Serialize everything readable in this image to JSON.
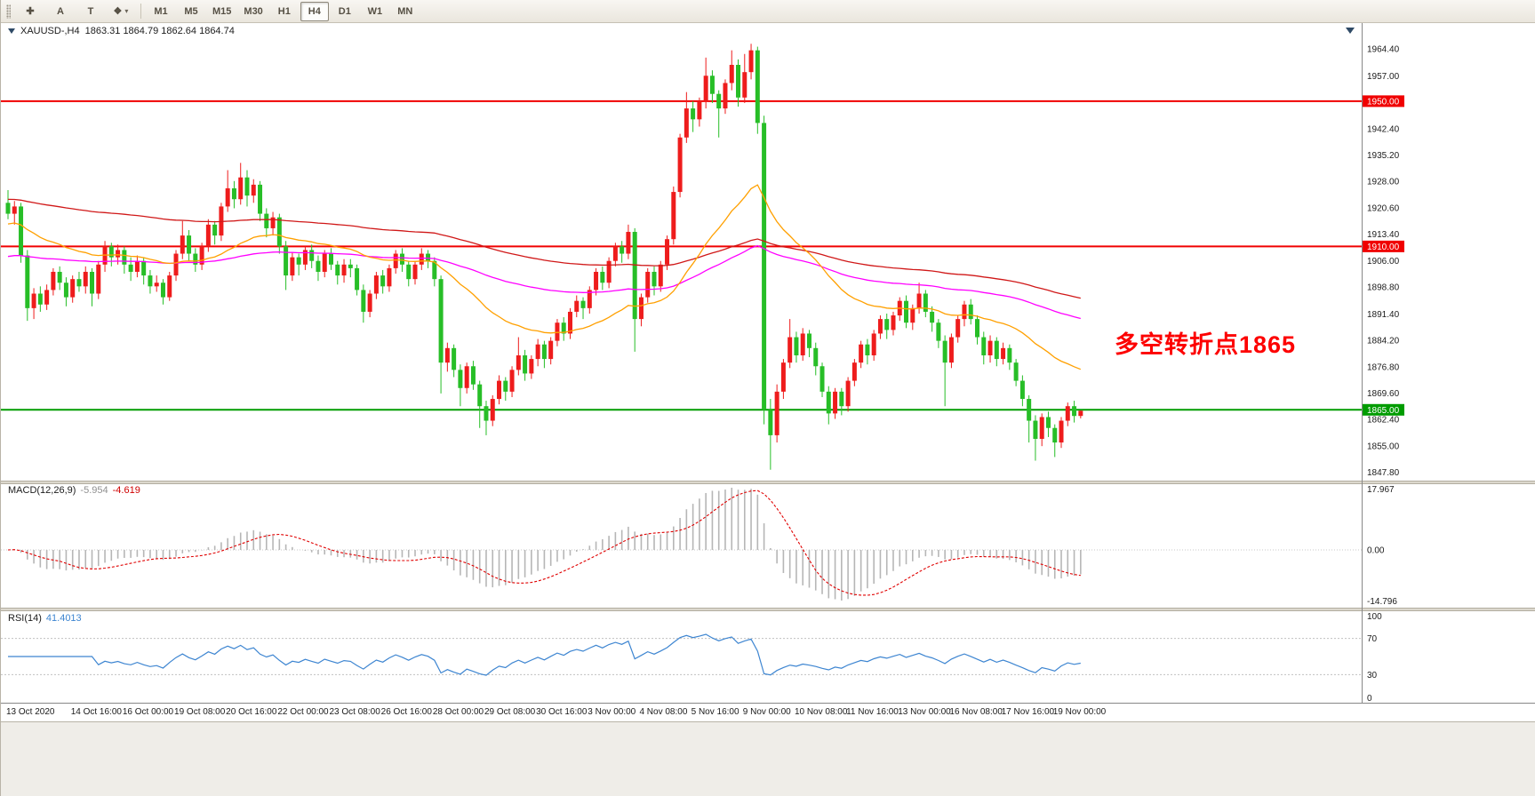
{
  "header": {
    "symbol": "XAUUSD-,H4",
    "ohlc": "1863.31 1864.79 1862.64 1864.74"
  },
  "annotation": {
    "text": "多空转折点1865",
    "color": "#fd0000"
  },
  "toolbar": {
    "tools": [
      {
        "name": "crosshair",
        "glyph": "✚"
      },
      {
        "name": "annotation-a",
        "glyph": "A"
      },
      {
        "name": "text-tool",
        "glyph": "T"
      },
      {
        "name": "shapes",
        "glyph": "❖",
        "caret": true
      }
    ],
    "timeframes": [
      {
        "label": "M1"
      },
      {
        "label": "M5"
      },
      {
        "label": "M15"
      },
      {
        "label": "M30"
      },
      {
        "label": "H1"
      },
      {
        "label": "H4",
        "active": true
      },
      {
        "label": "D1"
      },
      {
        "label": "W1"
      },
      {
        "label": "MN"
      }
    ]
  },
  "style": {
    "up": "#ee1c1c",
    "down": "#27be27",
    "macd_hist": "#b6b6b6",
    "macd_signal": "#e00000",
    "rsi_line": "#3d85d1",
    "level_line": "#c0c0c0",
    "grid_label": "#1a1a1a"
  },
  "chart_data": {
    "type": "candlestick",
    "title": "XAUUSD-,H4",
    "symbol": "XAUUSD-",
    "timeframe": "H4",
    "ylim": [
      1845.5,
      1971.5
    ],
    "y_ticks": [
      [
        1964.4,
        "1964.40"
      ],
      [
        1957.0,
        "1957.00"
      ],
      [
        1942.4,
        "1942.40"
      ],
      [
        1935.2,
        "1935.20"
      ],
      [
        1928.0,
        "1928.00"
      ],
      [
        1920.6,
        "1920.60"
      ],
      [
        1913.4,
        "1913.40"
      ],
      [
        1906.0,
        "1906.00"
      ],
      [
        1898.8,
        "1898.80"
      ],
      [
        1891.4,
        "1891.40"
      ],
      [
        1884.2,
        "1884.20"
      ],
      [
        1876.8,
        "1876.80"
      ],
      [
        1869.6,
        "1869.60"
      ],
      [
        1862.4,
        "1862.40"
      ],
      [
        1855.0,
        "1855.00"
      ],
      [
        1847.8,
        "1847.80"
      ]
    ],
    "hlines": [
      {
        "price": 1950.0,
        "label": "1950.00",
        "color": "#f00000"
      },
      {
        "price": 1910.0,
        "label": "1910.00",
        "color": "#f00000"
      },
      {
        "price": 1865.0,
        "label": "1865.00",
        "color": "#009c00"
      }
    ],
    "moving_averages": [
      {
        "name": "ma-slow-red",
        "period": 160,
        "seed": 1923,
        "color": "#d01818"
      },
      {
        "name": "ma-mid-magenta",
        "period": 110,
        "seed": 1907,
        "color": "#ff00ff"
      },
      {
        "name": "ma-fast-orange",
        "period": 34,
        "seed": 1916,
        "color": "#ffa000"
      }
    ],
    "macd": {
      "label": "MACD(12,26,9)",
      "value1": "-5.954",
      "value2": "-4.619",
      "fast": 12,
      "slow": 26,
      "signal_period": 9,
      "axis_labels": [
        "17.967",
        "0.00",
        "-14.796"
      ]
    },
    "rsi": {
      "label": "RSI(14)",
      "value": "41.4013",
      "period": 14,
      "levels": [
        70,
        30
      ],
      "axis_labels": [
        "100",
        "70",
        "30",
        "0"
      ]
    },
    "x_labels": [
      [
        0,
        "13 Oct 2020"
      ],
      [
        10,
        "14 Oct 16:00"
      ],
      [
        18,
        "16 Oct 00:00"
      ],
      [
        26,
        "19 Oct 08:00"
      ],
      [
        34,
        "20 Oct 16:00"
      ],
      [
        42,
        "22 Oct 00:00"
      ],
      [
        50,
        "23 Oct 08:00"
      ],
      [
        58,
        "26 Oct 16:00"
      ],
      [
        66,
        "28 Oct 00:00"
      ],
      [
        74,
        "29 Oct 08:00"
      ],
      [
        82,
        "30 Oct 16:00"
      ],
      [
        90,
        "3 Nov 00:00"
      ],
      [
        98,
        "4 Nov 08:00"
      ],
      [
        106,
        "5 Nov 16:00"
      ],
      [
        114,
        "9 Nov 00:00"
      ],
      [
        122,
        "10 Nov 08:00"
      ],
      [
        130,
        "11 Nov 16:00"
      ],
      [
        138,
        "13 Nov 00:00"
      ],
      [
        146,
        "16 Nov 08:00"
      ],
      [
        154,
        "17 Nov 16:00"
      ],
      [
        162,
        "19 Nov 00:00"
      ]
    ],
    "ohlc": [
      [
        1922,
        1925.5,
        1917.5,
        1919
      ],
      [
        1919,
        1922.5,
        1916,
        1921
      ],
      [
        1921,
        1922,
        1905.5,
        1907.5
      ],
      [
        1907.5,
        1909,
        1889.5,
        1893
      ],
      [
        1893,
        1898.5,
        1890,
        1897
      ],
      [
        1897,
        1899,
        1892,
        1894
      ],
      [
        1894,
        1899.5,
        1892.5,
        1898
      ],
      [
        1898,
        1904,
        1896.5,
        1903
      ],
      [
        1903,
        1904.5,
        1898,
        1900
      ],
      [
        1900,
        1901.5,
        1893.5,
        1896
      ],
      [
        1896,
        1902,
        1894.5,
        1901
      ],
      [
        1901,
        1903,
        1897.5,
        1899
      ],
      [
        1899,
        1904.5,
        1897,
        1903
      ],
      [
        1903,
        1904,
        1893.5,
        1897
      ],
      [
        1897,
        1906,
        1895.5,
        1905
      ],
      [
        1905,
        1911.5,
        1903,
        1910
      ],
      [
        1910,
        1911,
        1904.5,
        1907
      ],
      [
        1907,
        1910.5,
        1905,
        1909
      ],
      [
        1909,
        1910,
        1902.5,
        1905
      ],
      [
        1905,
        1907,
        1900.5,
        1903
      ],
      [
        1903,
        1907.5,
        1901.5,
        1906
      ],
      [
        1906,
        1907,
        1899.5,
        1902
      ],
      [
        1902,
        1903.5,
        1897,
        1899
      ],
      [
        1899,
        1902,
        1897.5,
        1900
      ],
      [
        1900,
        1901,
        1894,
        1896
      ],
      [
        1896,
        1903,
        1895,
        1902
      ],
      [
        1902,
        1909,
        1900.5,
        1908
      ],
      [
        1908,
        1917,
        1906.5,
        1913
      ],
      [
        1913,
        1914.5,
        1906,
        1908
      ],
      [
        1908,
        1909.5,
        1903,
        1905
      ],
      [
        1905,
        1911,
        1903.5,
        1910
      ],
      [
        1910,
        1917.5,
        1908.5,
        1916
      ],
      [
        1916,
        1917,
        1910.5,
        1913
      ],
      [
        1913,
        1922,
        1911.5,
        1921
      ],
      [
        1921,
        1931,
        1919.5,
        1926
      ],
      [
        1926,
        1928,
        1920.5,
        1923
      ],
      [
        1923,
        1933,
        1921.5,
        1929
      ],
      [
        1929,
        1931,
        1921,
        1924
      ],
      [
        1924,
        1928.5,
        1922,
        1927
      ],
      [
        1927,
        1928,
        1917,
        1919
      ],
      [
        1919,
        1920.5,
        1912.5,
        1915
      ],
      [
        1915,
        1919.5,
        1913,
        1918
      ],
      [
        1918,
        1919,
        1908,
        1910
      ],
      [
        1910,
        1911.5,
        1898,
        1902
      ],
      [
        1902,
        1908.5,
        1900.5,
        1907
      ],
      [
        1907,
        1908,
        1902,
        1905
      ],
      [
        1905,
        1910,
        1903.5,
        1909
      ],
      [
        1909,
        1910.5,
        1904,
        1906
      ],
      [
        1906,
        1907.5,
        1900.5,
        1903
      ],
      [
        1903,
        1909,
        1901.5,
        1908
      ],
      [
        1908,
        1909.5,
        1903.5,
        1905
      ],
      [
        1905,
        1906,
        1899.5,
        1902
      ],
      [
        1902,
        1906.5,
        1900,
        1905
      ],
      [
        1905,
        1906.5,
        1901.5,
        1904
      ],
      [
        1904,
        1905,
        1896.5,
        1898
      ],
      [
        1898,
        1899.5,
        1889,
        1892
      ],
      [
        1892,
        1898,
        1890.5,
        1897
      ],
      [
        1897,
        1903,
        1895.5,
        1902
      ],
      [
        1902,
        1903.5,
        1897,
        1899
      ],
      [
        1899,
        1905,
        1897.5,
        1904
      ],
      [
        1904,
        1909,
        1902.5,
        1908
      ],
      [
        1908,
        1909.5,
        1903,
        1905
      ],
      [
        1905,
        1906,
        1899,
        1901
      ],
      [
        1901,
        1906,
        1899.5,
        1905
      ],
      [
        1905,
        1909.5,
        1903.5,
        1908
      ],
      [
        1908,
        1909,
        1904,
        1906
      ],
      [
        1906,
        1907,
        1899,
        1901
      ],
      [
        1901,
        1902,
        1869.5,
        1878
      ],
      [
        1878,
        1883.5,
        1875.5,
        1882
      ],
      [
        1882,
        1883,
        1874,
        1876
      ],
      [
        1876,
        1877.5,
        1866,
        1871
      ],
      [
        1871,
        1878,
        1869.5,
        1877
      ],
      [
        1877,
        1878.5,
        1870.5,
        1872
      ],
      [
        1872,
        1873,
        1860,
        1866
      ],
      [
        1866,
        1867.5,
        1858,
        1862
      ],
      [
        1862,
        1869,
        1860.5,
        1868
      ],
      [
        1868,
        1874.5,
        1866.5,
        1873
      ],
      [
        1873,
        1874,
        1867.5,
        1870
      ],
      [
        1870,
        1877,
        1868.5,
        1876
      ],
      [
        1876,
        1885,
        1874.5,
        1880
      ],
      [
        1880,
        1881.5,
        1873,
        1875
      ],
      [
        1875,
        1880,
        1873.5,
        1879
      ],
      [
        1879,
        1884.5,
        1877,
        1883
      ],
      [
        1883,
        1884,
        1876.5,
        1879
      ],
      [
        1879,
        1885,
        1877.5,
        1884
      ],
      [
        1884,
        1890,
        1882.5,
        1889
      ],
      [
        1889,
        1890.5,
        1884,
        1886
      ],
      [
        1886,
        1893,
        1884.5,
        1892
      ],
      [
        1892,
        1896.5,
        1890.5,
        1895
      ],
      [
        1895,
        1896,
        1890,
        1893
      ],
      [
        1893,
        1899,
        1891.5,
        1898
      ],
      [
        1898,
        1904,
        1896.5,
        1903
      ],
      [
        1903,
        1904.5,
        1898,
        1900
      ],
      [
        1900,
        1907,
        1898.5,
        1906
      ],
      [
        1906,
        1911,
        1904.5,
        1910
      ],
      [
        1910,
        1911.5,
        1905.5,
        1908
      ],
      [
        1908,
        1916,
        1906.5,
        1914
      ],
      [
        1914,
        1915,
        1881,
        1890
      ],
      [
        1890,
        1897,
        1888,
        1896
      ],
      [
        1896,
        1904,
        1894.5,
        1903
      ],
      [
        1903,
        1904.5,
        1896.5,
        1899
      ],
      [
        1899,
        1906,
        1897.5,
        1905
      ],
      [
        1905,
        1913,
        1903.5,
        1912
      ],
      [
        1912,
        1926.5,
        1910.5,
        1925
      ],
      [
        1925,
        1941,
        1923.5,
        1940
      ],
      [
        1940,
        1952.5,
        1938.5,
        1948
      ],
      [
        1948,
        1950,
        1941.5,
        1945
      ],
      [
        1945,
        1951,
        1943,
        1950
      ],
      [
        1950,
        1962,
        1948,
        1957
      ],
      [
        1957,
        1958.5,
        1949.5,
        1952
      ],
      [
        1952,
        1953,
        1940,
        1948
      ],
      [
        1948,
        1956,
        1946.5,
        1955
      ],
      [
        1955,
        1964,
        1953,
        1960
      ],
      [
        1960,
        1961.5,
        1948.5,
        1951
      ],
      [
        1951,
        1963,
        1949.5,
        1958
      ],
      [
        1958,
        1965.8,
        1956,
        1964
      ],
      [
        1964,
        1965,
        1941,
        1944
      ],
      [
        1944,
        1946,
        1861,
        1865
      ],
      [
        1865,
        1868,
        1848.5,
        1858
      ],
      [
        1858,
        1872,
        1856,
        1870
      ],
      [
        1870,
        1879,
        1868,
        1878
      ],
      [
        1878,
        1890,
        1876.5,
        1885
      ],
      [
        1885,
        1886.5,
        1878,
        1880
      ],
      [
        1880,
        1887.5,
        1878.5,
        1886
      ],
      [
        1886,
        1887,
        1879.5,
        1882
      ],
      [
        1882,
        1883.5,
        1874.5,
        1877
      ],
      [
        1877,
        1878,
        1868.5,
        1870
      ],
      [
        1870,
        1871.5,
        1861,
        1864
      ],
      [
        1864,
        1871,
        1862.5,
        1870
      ],
      [
        1870,
        1871,
        1863.5,
        1866
      ],
      [
        1866,
        1874,
        1864.5,
        1873
      ],
      [
        1873,
        1879,
        1871.5,
        1878
      ],
      [
        1878,
        1884,
        1876.5,
        1883
      ],
      [
        1883,
        1884.5,
        1877.5,
        1880
      ],
      [
        1880,
        1887,
        1878.5,
        1886
      ],
      [
        1886,
        1891,
        1884.5,
        1890
      ],
      [
        1890,
        1891.5,
        1884.5,
        1887
      ],
      [
        1887,
        1892,
        1885.5,
        1891
      ],
      [
        1891,
        1896,
        1889.5,
        1895
      ],
      [
        1895,
        1896.5,
        1887.5,
        1889
      ],
      [
        1889,
        1894,
        1887,
        1893
      ],
      [
        1893,
        1900,
        1891.5,
        1897
      ],
      [
        1897,
        1898,
        1890.5,
        1892
      ],
      [
        1892,
        1893.5,
        1886.5,
        1889
      ],
      [
        1889,
        1890,
        1882,
        1884
      ],
      [
        1884,
        1885.5,
        1866,
        1878
      ],
      [
        1878,
        1886,
        1876.5,
        1885
      ],
      [
        1885,
        1891,
        1883.5,
        1890
      ],
      [
        1890,
        1895,
        1888,
        1894
      ],
      [
        1894,
        1895.5,
        1888.5,
        1890
      ],
      [
        1890,
        1891,
        1883,
        1885
      ],
      [
        1885,
        1886.5,
        1877.5,
        1880
      ],
      [
        1880,
        1885.5,
        1878,
        1884
      ],
      [
        1884,
        1885,
        1877,
        1879
      ],
      [
        1879,
        1883.5,
        1877.5,
        1882
      ],
      [
        1882,
        1883,
        1876,
        1878
      ],
      [
        1878,
        1879,
        1871.5,
        1873
      ],
      [
        1873,
        1874.5,
        1866,
        1868
      ],
      [
        1868,
        1869,
        1856,
        1862
      ],
      [
        1862,
        1863.5,
        1851,
        1857
      ],
      [
        1857,
        1864,
        1855,
        1863
      ],
      [
        1863,
        1864.5,
        1857.5,
        1860
      ],
      [
        1860,
        1861,
        1852,
        1856
      ],
      [
        1856,
        1863,
        1854.5,
        1862
      ],
      [
        1862,
        1867,
        1860.5,
        1866
      ],
      [
        1866,
        1867.5,
        1861.5,
        1863.3
      ],
      [
        1863.31,
        1864.79,
        1862.64,
        1864.74
      ]
    ]
  }
}
